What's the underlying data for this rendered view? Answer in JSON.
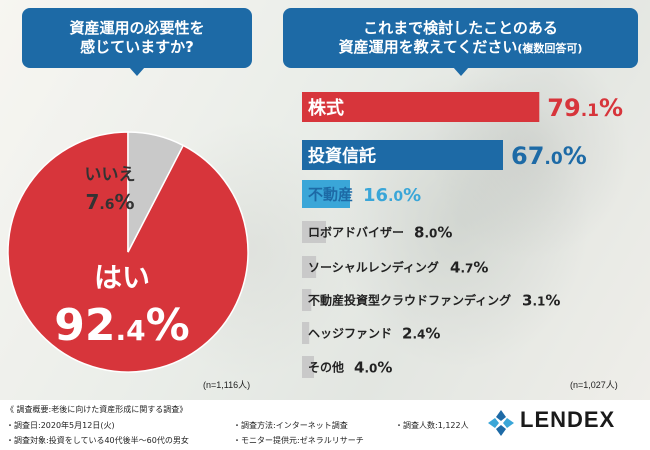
{
  "left_title": {
    "line1": "資産運用の必要性を",
    "line2": "感じていますか?"
  },
  "right_title": {
    "line1": "これまで検討したことのある",
    "line2": "資産運用を教えてください",
    "line2_note": "(複数回答可)"
  },
  "left_n": "(n=1,116人)",
  "right_n": "(n=1,027人)",
  "colors": {
    "red": "#d7353b",
    "blue": "#1d6aa6",
    "cyan": "#3aa6d8",
    "gray": "#c9c9c9",
    "title_bg": "#1d6aa6"
  },
  "chart_data": [
    {
      "type": "pie",
      "title": "資産運用の必要性を感じていますか?",
      "categories": [
        "はい",
        "いいえ"
      ],
      "values": [
        92.4,
        7.6
      ],
      "value_labels": [
        {
          "number": "92",
          "decimal": ".4",
          "unit": "%"
        },
        {
          "number": "7",
          "decimal": ".6",
          "unit": "%"
        }
      ],
      "colors": [
        "#d7353b",
        "#c9c9c9"
      ]
    },
    {
      "type": "bar",
      "orientation": "horizontal",
      "title": "これまで検討したことのある資産運用を教えてください(複数回答可)",
      "categories": [
        "株式",
        "投資信託",
        "不動産",
        "ロボアドバイザー",
        "ソーシャルレンディング",
        "不動産投資型クラウドファンディング",
        "ヘッジファンド",
        "その他"
      ],
      "values": [
        79.1,
        67.0,
        16.0,
        8.0,
        4.7,
        3.1,
        2.4,
        4.0
      ],
      "value_labels": [
        {
          "number": "79",
          "decimal": ".1",
          "unit": "%"
        },
        {
          "number": "67",
          "decimal": ".0",
          "unit": "%"
        },
        {
          "number": "16",
          "decimal": ".0",
          "unit": "%"
        },
        {
          "number": "8",
          "decimal": ".0",
          "unit": "%"
        },
        {
          "number": "4",
          "decimal": ".7",
          "unit": "%"
        },
        {
          "number": "3",
          "decimal": ".1",
          "unit": "%"
        },
        {
          "number": "2",
          "decimal": ".4",
          "unit": "%"
        },
        {
          "number": "4",
          "decimal": ".0",
          "unit": "%"
        }
      ],
      "colors": [
        "#d7353b",
        "#1d6aa6",
        "#3aa6d8",
        "#c9c9c9",
        "#c9c9c9",
        "#c9c9c9",
        "#c9c9c9",
        "#c9c9c9"
      ]
    }
  ],
  "footer": {
    "heading": "《 調査概要:老後に向けた資産形成に関する調査》",
    "date": "・調査日:2020年5月12日(火)",
    "target": "・調査対象:投資をしている40代後半〜60代の男女",
    "method": "・調査方法:インターネット調査",
    "provider": "・モニター提供元:ゼネラルリサーチ",
    "count": "・調査人数:1,122人",
    "logo": "LENDEX"
  }
}
